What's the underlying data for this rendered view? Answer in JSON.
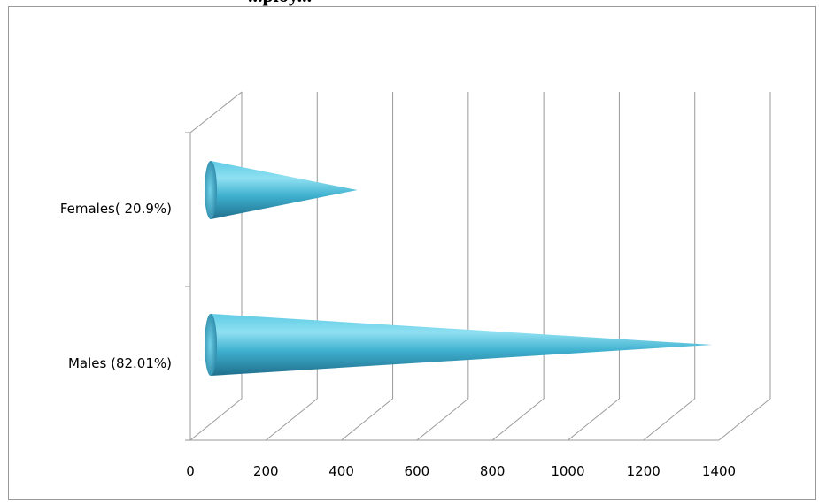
{
  "chart_data": {
    "type": "bar",
    "style": "3d-cone",
    "orientation": "horizontal",
    "title": "...ploy...",
    "categories": [
      "Males (82.01%)",
      "Females( 20.9%)"
    ],
    "values": [
      1380,
      440
    ],
    "xlim": [
      0,
      1400
    ],
    "x_ticks": [
      "0",
      "200",
      "400",
      "600",
      "800",
      "1000",
      "1200",
      "1400"
    ],
    "grid": true,
    "legend": "none",
    "series_color": "#3fb0cf"
  }
}
